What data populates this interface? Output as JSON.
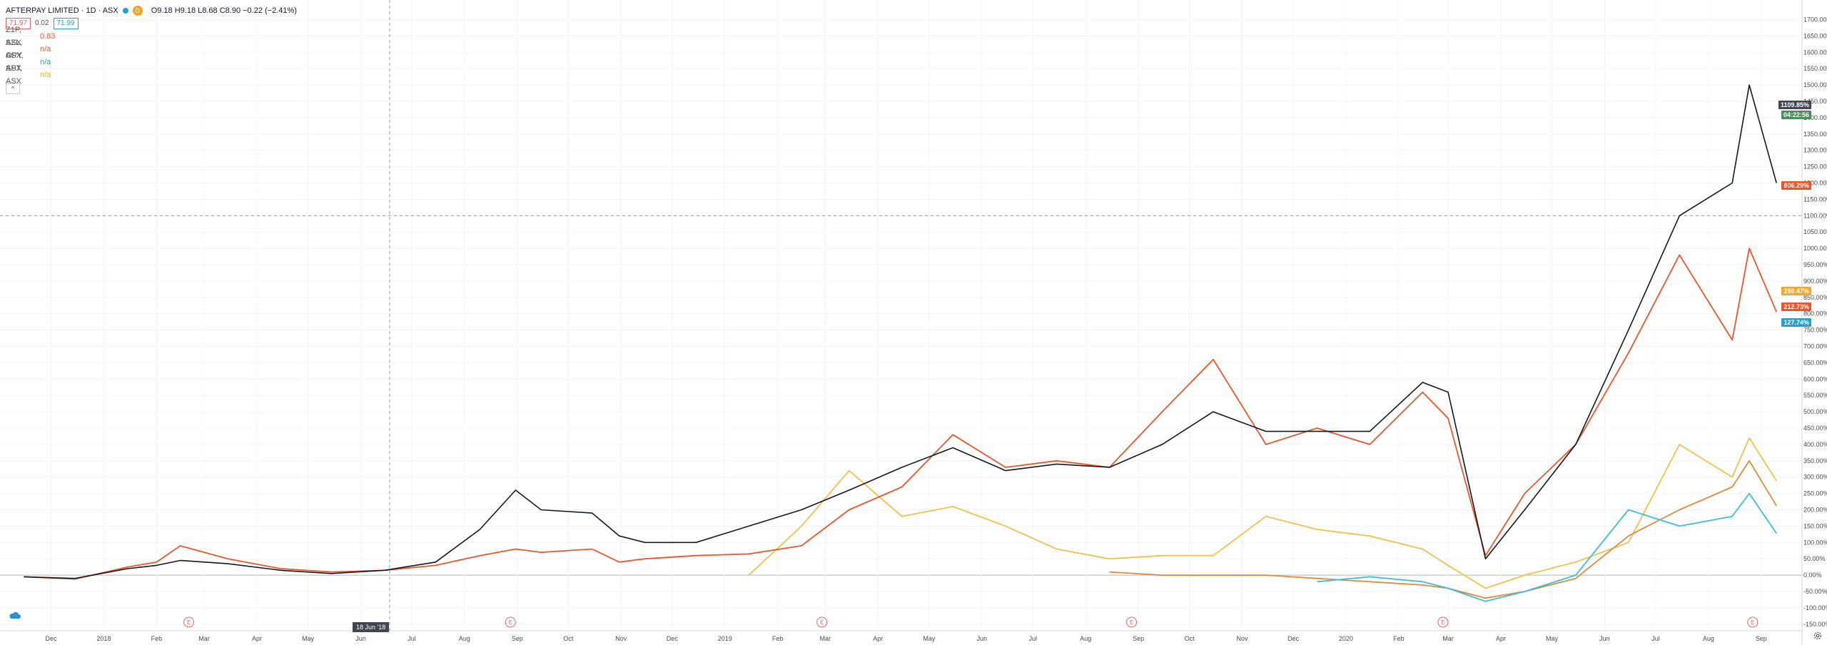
{
  "header": {
    "title": "AFTERPAY LIMITED · 1D · ASX",
    "interval_badge": "D",
    "ohlc": "O9.18 H9.18 L8.68 C8.90 −0.22 (−2.41%)",
    "bid": "71.97",
    "spread": "0.02",
    "ask": "71.99"
  },
  "compare": [
    {
      "name": "Z1P, ASX",
      "value": "0.83",
      "color": "#e8572a"
    },
    {
      "name": "SZL, ASX",
      "value": "n/a",
      "color": "#e8572a"
    },
    {
      "name": "OPY, ASX",
      "value": "n/a",
      "color": "#26a0c8"
    },
    {
      "name": "SPT, ASX",
      "value": "n/a",
      "color": "#e7b320"
    }
  ],
  "crosshair_date": "18 Jun '18",
  "price_tags": {
    "crosshair": "1109.85%",
    "countdown": "04:22:56",
    "z1p": "806.29%",
    "spt": "289.47%",
    "szl": "212.73%",
    "opy": "127.74%"
  },
  "colors": {
    "apt": "#131722",
    "z1p": "#e8572a",
    "szl": "#e08a3c",
    "opy": "#3cbcd6",
    "spt": "#f0c24a",
    "grid": "#f0f3fa",
    "earnings": "#e06666"
  },
  "chart_data": {
    "type": "line",
    "x_dates": [
      "2017-11-15",
      "2017-12-15",
      "2018-01-15",
      "2018-02-01",
      "2018-02-15",
      "2018-03-15",
      "2018-04-15",
      "2018-05-15",
      "2018-06-15",
      "2018-07-15",
      "2018-08-10",
      "2018-08-31",
      "2018-09-15",
      "2018-10-15",
      "2018-10-31",
      "2018-11-15",
      "2018-12-15",
      "2019-01-15",
      "2019-02-15",
      "2019-03-15",
      "2019-04-15",
      "2019-05-15",
      "2019-06-15",
      "2019-07-15",
      "2019-08-15",
      "2019-09-15",
      "2019-10-15",
      "2019-11-15",
      "2019-12-15",
      "2020-01-15",
      "2020-02-15",
      "2020-03-01",
      "2020-03-23",
      "2020-04-15",
      "2020-05-15",
      "2020-06-15",
      "2020-07-15",
      "2020-08-15",
      "2020-08-25",
      "2020-09-10"
    ],
    "series": [
      {
        "name": "AFTERPAY LIMITED",
        "values": [
          -5,
          -10,
          20,
          30,
          45,
          35,
          15,
          5,
          15,
          40,
          140,
          260,
          200,
          190,
          120,
          100,
          100,
          150,
          200,
          260,
          330,
          390,
          320,
          340,
          330,
          400,
          500,
          440,
          440,
          440,
          590,
          560,
          50,
          200,
          400,
          750,
          1100,
          1200,
          1500,
          1200
        ]
      },
      {
        "name": "Z1P, ASX",
        "values": [
          -5,
          -12,
          25,
          40,
          90,
          50,
          20,
          10,
          15,
          30,
          60,
          80,
          70,
          80,
          40,
          50,
          60,
          65,
          90,
          200,
          270,
          430,
          330,
          350,
          330,
          500,
          660,
          400,
          450,
          400,
          560,
          480,
          60,
          250,
          400,
          680,
          980,
          720,
          1000,
          806
        ]
      },
      {
        "name": "SZL, ASX",
        "values": [
          null,
          null,
          null,
          null,
          null,
          null,
          null,
          null,
          null,
          null,
          null,
          null,
          null,
          null,
          null,
          null,
          null,
          null,
          null,
          null,
          null,
          null,
          null,
          null,
          10,
          0,
          0,
          0,
          -10,
          -20,
          -30,
          -40,
          -70,
          -50,
          -10,
          120,
          200,
          270,
          350,
          212
        ]
      },
      {
        "name": "OPY, ASX",
        "values": [
          null,
          null,
          null,
          null,
          null,
          null,
          null,
          null,
          null,
          null,
          null,
          null,
          null,
          null,
          null,
          null,
          null,
          null,
          null,
          null,
          null,
          null,
          null,
          null,
          null,
          null,
          null,
          null,
          -20,
          -5,
          -20,
          -40,
          -80,
          -50,
          0,
          200,
          150,
          180,
          250,
          128
        ]
      },
      {
        "name": "SPT, ASX",
        "values": [
          null,
          null,
          null,
          null,
          null,
          null,
          null,
          null,
          null,
          null,
          null,
          null,
          null,
          null,
          null,
          null,
          null,
          0,
          150,
          320,
          180,
          210,
          150,
          80,
          50,
          60,
          60,
          180,
          140,
          120,
          80,
          30,
          -40,
          0,
          40,
          100,
          400,
          300,
          420,
          289
        ]
      }
    ],
    "ylim": [
      -170,
      1760
    ],
    "y_ticks": [
      "1700.00%",
      "1650.00%",
      "1600.00%",
      "1550.00%",
      "1500.00%",
      "1450.00%",
      "1400.00%",
      "1350.00%",
      "1300.00%",
      "1250.00%",
      "1200.00%",
      "1150.00%",
      "1100.00%",
      "1050.00%",
      "1000.00%",
      "950.00%",
      "900.00%",
      "850.00%",
      "800.00%",
      "750.00%",
      "700.00%",
      "650.00%",
      "600.00%",
      "550.00%",
      "500.00%",
      "450.00%",
      "400.00%",
      "350.00%",
      "300.00%",
      "250.00%",
      "200.00%",
      "150.00%",
      "100.00%",
      "50.00%",
      "0.00%",
      "-50.00%",
      "-100.00%",
      "-150.00%"
    ],
    "x_tick_labels": [
      "Dec",
      "2018",
      "Feb",
      "Mar",
      "Apr",
      "May",
      "Jun",
      "Jul",
      "Aug",
      "Sep",
      "Oct",
      "Nov",
      "Dec",
      "2019",
      "Feb",
      "Mar",
      "Apr",
      "May",
      "Jun",
      "Jul",
      "Aug",
      "Sep",
      "Oct",
      "Nov",
      "Dec",
      "2020",
      "Feb",
      "Mar",
      "Apr",
      "May",
      "Jun",
      "Jul",
      "Aug",
      "Sep"
    ],
    "earnings_markers": [
      "E",
      "E",
      "E",
      "E",
      "E",
      "E"
    ],
    "grid": true
  }
}
